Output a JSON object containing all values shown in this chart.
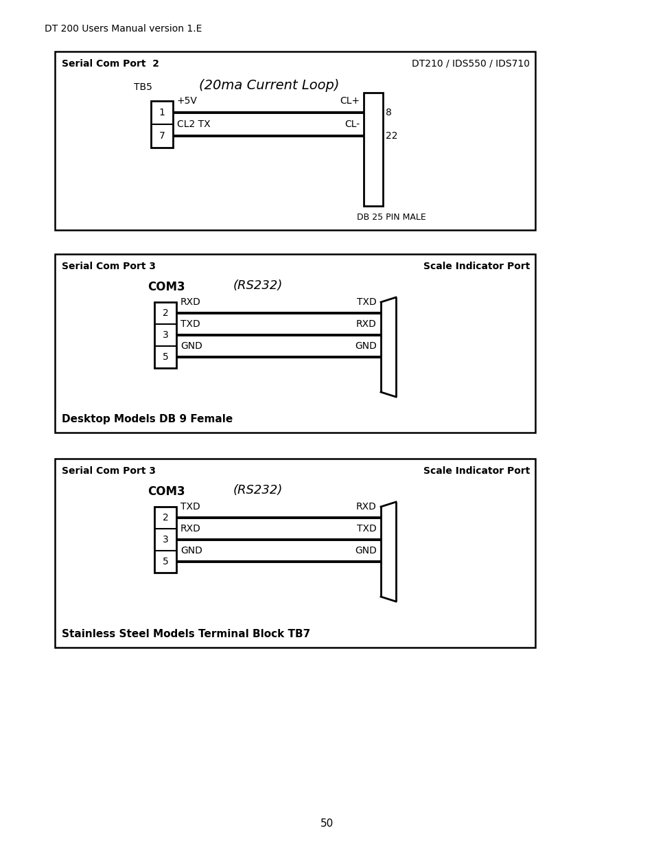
{
  "page_header": "DT 200 Users Manual version 1.E",
  "page_number": "50",
  "bg_color": "#ffffff",
  "diagram1": {
    "box_title_left": "Serial Com Port  2",
    "box_title_right": "DT210 / IDS550 / IDS710",
    "center_label": "(20ma Current Loop)",
    "tb_label": "TB5",
    "left_pins": [
      "1",
      "7"
    ],
    "left_sigs": [
      "+5V",
      "CL2 TX"
    ],
    "right_sigs": [
      "CL+",
      "CL-"
    ],
    "right_pins": [
      "8",
      "22"
    ],
    "connector_label": "DB 25 PIN MALE"
  },
  "diagram2": {
    "box_title_left": "Serial Com Port 3",
    "box_title_right": "Scale Indicator Port",
    "com_label": "COM3",
    "center_label": "(RS232)",
    "left_pins": [
      "2",
      "3",
      "5"
    ],
    "left_sigs": [
      "RXD",
      "TXD",
      "GND"
    ],
    "right_sigs": [
      "TXD",
      "RXD",
      "GND"
    ],
    "bottom_label": "Desktop Models DB 9 Female"
  },
  "diagram3": {
    "box_title_left": "Serial Com Port 3",
    "box_title_right": "Scale Indicator Port",
    "com_label": "COM3",
    "center_label": "(RS232)",
    "left_pins": [
      "2",
      "3",
      "5"
    ],
    "left_sigs": [
      "TXD",
      "RXD",
      "GND"
    ],
    "right_sigs": [
      "RXD",
      "TXD",
      "GND"
    ],
    "bottom_label": "Stainless Steel Models Terminal Block TB7"
  }
}
